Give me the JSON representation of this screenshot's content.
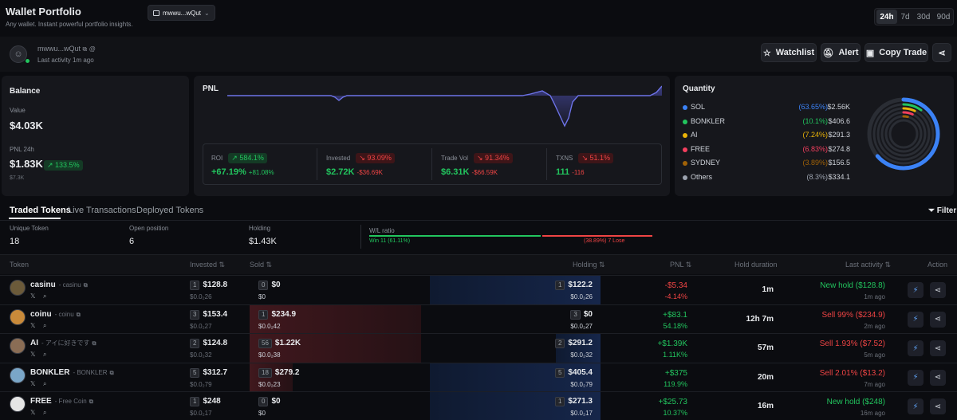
{
  "header": {
    "title": "Wallet Portfolio",
    "subtitle": "Any wallet. Instant powerful portfolio insights.",
    "wallet_select": "mwwu...wQut",
    "ranges": [
      "24h",
      "7d",
      "30d",
      "90d"
    ],
    "active_range": "24h"
  },
  "wallet": {
    "address": "mwwu...wQut",
    "last_activity": "Last activity 1m ago",
    "watchlist_label": "Watchlist",
    "alert_label": "Alert",
    "copy_trade_label": "Copy Trade"
  },
  "balance": {
    "title": "Balance",
    "value_label": "Value",
    "value": "$4.03K",
    "pnl_label": "PNL 24h",
    "pnl_value": "$1.83K",
    "pnl_badge": "↗ 133.5%",
    "pnl_sub": "$7.3K"
  },
  "pnl": {
    "title": "PNL",
    "stats": [
      {
        "label": "ROI",
        "badge": "↗ 584.1%",
        "badge_type": "g",
        "value": "+67.19%",
        "value_color": "green",
        "sub": "+81.08%",
        "sub_color": "green"
      },
      {
        "label": "Invested",
        "badge": "↘ 93.09%",
        "badge_type": "r",
        "value": "$2.72K",
        "value_color": "green",
        "sub": "-$36.69K",
        "sub_color": "red"
      },
      {
        "label": "Trade Vol",
        "badge": "↘ 91.34%",
        "badge_type": "r",
        "value": "$6.31K",
        "value_color": "green",
        "sub": "-$66.59K",
        "sub_color": "red"
      },
      {
        "label": "TXNS",
        "badge": "↘ 51.1%",
        "badge_type": "r",
        "value": "111",
        "value_color": "green",
        "sub": "-116",
        "sub_color": "red"
      }
    ]
  },
  "quantity": {
    "title": "Quantity",
    "items": [
      {
        "name": "SOL",
        "pct": "(63.65%)",
        "value": "$2.56K",
        "color": "#3b82f6",
        "frac": 0.6365
      },
      {
        "name": "BONKLER",
        "pct": "(10.1%)",
        "value": "$406.6",
        "color": "#22c55e",
        "frac": 0.101
      },
      {
        "name": "AI",
        "pct": "(7.24%)",
        "value": "$291.3",
        "color": "#eab308",
        "frac": 0.0724
      },
      {
        "name": "FREE",
        "pct": "(6.83%)",
        "value": "$274.8",
        "color": "#f43f5e",
        "frac": 0.0683
      },
      {
        "name": "SYDNEY",
        "pct": "(3.89%)",
        "value": "$156.5",
        "color": "#a16207",
        "frac": 0.0389
      },
      {
        "name": "Others",
        "pct": "(8.3%)",
        "value": "$334.1",
        "color": "#9ca3af",
        "frac": 0.083
      }
    ]
  },
  "tabs": {
    "traded": "Traded Tokens",
    "live": "Live Transactions",
    "deployed": "Deployed Tokens",
    "filter": "Filter"
  },
  "summary": {
    "unique_label": "Unique Token",
    "unique_value": "18",
    "open_label": "Open position",
    "open_value": "6",
    "holding_label": "Holding",
    "holding_value": "$1.43K",
    "wl_label": "W/L ratio",
    "win_text": "Win 11 (61.11%)",
    "lose_text": "(38.89%) 7 Lose",
    "win_frac": 0.6111
  },
  "table": {
    "headers": {
      "token": "Token",
      "invested": "Invested",
      "sold": "Sold",
      "holding": "Holding",
      "pnl": "PNL",
      "hold_duration": "Hold duration",
      "last_activity": "Last activity",
      "action": "Action"
    },
    "rows": [
      {
        "name": "casinu",
        "ticker": "- casinu",
        "inv_count": "1",
        "inv": "$128.8",
        "inv_sub": "$0.0₂26",
        "sold_count": "0",
        "sold": "$0",
        "sold_sub": "$0",
        "hold_count": "1",
        "hold": "$122.2",
        "hold_sub": "$0.0₂26",
        "pnl": "-$5.34",
        "pnl_pct": "-4.14%",
        "pnl_color": "red",
        "duration": "1m",
        "activity": "New hold ($128.8)",
        "activity_color": "green",
        "activity_time": "1m ago",
        "sold_frac": 0,
        "hold_frac": 0.95,
        "avatar": "#6b5a3a"
      },
      {
        "name": "coinu",
        "ticker": "- coinu",
        "inv_count": "3",
        "inv": "$153.4",
        "inv_sub": "$0.0₂27",
        "sold_count": "1",
        "sold": "$234.9",
        "sold_sub": "$0.0₂42",
        "hold_count": "3",
        "hold": "$0",
        "hold_sub": "$0.0₂27",
        "pnl": "+$83.1",
        "pnl_pct": "54.18%",
        "pnl_color": "green",
        "duration": "12h 7m",
        "activity": "Sell 99% ($234.9)",
        "activity_color": "red",
        "activity_time": "2m ago",
        "sold_frac": 1.0,
        "hold_frac": 0,
        "avatar": "#c98a3a"
      },
      {
        "name": "AI",
        "ticker": "- アイに好きです",
        "inv_count": "2",
        "inv": "$124.8",
        "inv_sub": "$0.0₂32",
        "sold_count": "56",
        "sold": "$1.22K",
        "sold_sub": "$0.0₂38",
        "hold_count": "2",
        "hold": "$291.2",
        "hold_sub": "$0.0₂32",
        "pnl": "+$1.39K",
        "pnl_pct": "1.11K%",
        "pnl_color": "green",
        "duration": "57m",
        "activity": "Sell 1.93% ($7.52)",
        "activity_color": "red",
        "activity_time": "5m ago",
        "sold_frac": 1.0,
        "hold_frac": 0.25,
        "avatar": "#8a6d55"
      },
      {
        "name": "BONKLER",
        "ticker": "- BONKLER",
        "inv_count": "5",
        "inv": "$312.7",
        "inv_sub": "$0.0₂79",
        "sold_count": "18",
        "sold": "$279.2",
        "sold_sub": "$0.0₂23",
        "hold_count": "5",
        "hold": "$405.4",
        "hold_sub": "$0.0₂79",
        "pnl": "+$375",
        "pnl_pct": "119.9%",
        "pnl_color": "green",
        "duration": "20m",
        "activity": "Sell 2.01% ($13.2)",
        "activity_color": "red",
        "activity_time": "7m ago",
        "sold_frac": 0.25,
        "hold_frac": 0.95,
        "avatar": "#7aa6c8"
      },
      {
        "name": "FREE",
        "ticker": "- Free Coin",
        "inv_count": "1",
        "inv": "$248",
        "inv_sub": "$0.0₂17",
        "sold_count": "0",
        "sold": "$0",
        "sold_sub": "$0",
        "hold_count": "1",
        "hold": "$271.3",
        "hold_sub": "$0.0₂17",
        "pnl": "+$25.73",
        "pnl_pct": "10.37%",
        "pnl_color": "green",
        "duration": "16m",
        "activity": "New hold ($248)",
        "activity_color": "green",
        "activity_time": "16m ago",
        "sold_frac": 0,
        "hold_frac": 0.95,
        "avatar": "#e5e5e5"
      }
    ]
  }
}
